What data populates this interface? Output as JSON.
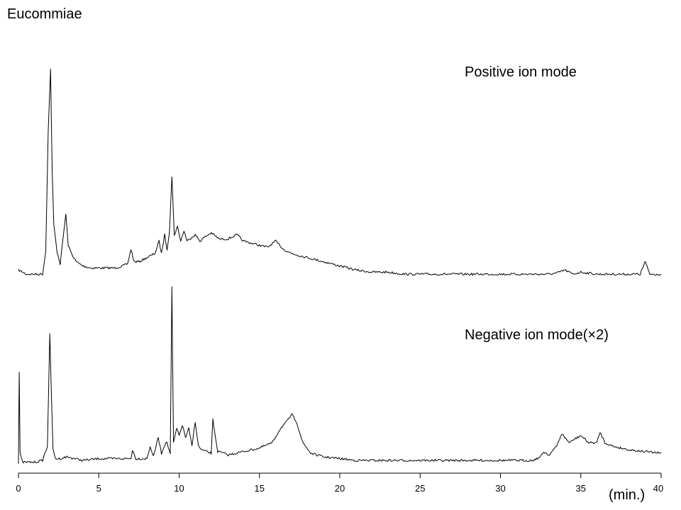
{
  "chart_data": {
    "type": "line",
    "title": "Eucommiae",
    "xlabel": "(min.)",
    "ylabel": "",
    "xlim": [
      0,
      40
    ],
    "x_ticks": [
      "0",
      "5",
      "10",
      "15",
      "20",
      "25",
      "30",
      "35",
      "40"
    ],
    "grid": false,
    "series": [
      {
        "name": "Positive ion mode",
        "color": "#000000",
        "x": [
          0.0,
          0.5,
          1.0,
          1.5,
          1.7,
          1.85,
          2.0,
          2.1,
          2.2,
          2.4,
          2.6,
          2.8,
          2.95,
          3.1,
          3.3,
          3.6,
          4.0,
          4.5,
          5.0,
          5.5,
          6.0,
          6.5,
          6.8,
          7.0,
          7.2,
          7.5,
          8.0,
          8.5,
          8.75,
          8.9,
          9.1,
          9.25,
          9.4,
          9.55,
          9.7,
          9.9,
          10.1,
          10.3,
          10.5,
          10.8,
          11.0,
          11.3,
          11.6,
          12.0,
          12.5,
          13.0,
          13.6,
          14.0,
          14.5,
          15.0,
          15.5,
          16.0,
          16.5,
          17.0,
          17.5,
          18.0,
          19.0,
          20.0,
          21.0,
          22.0,
          23.0,
          24.0,
          25.0,
          26.0,
          27.0,
          28.0,
          29.0,
          30.0,
          31.0,
          32.0,
          33.0,
          33.5,
          34.0,
          34.5,
          35.0,
          36.0,
          37.0,
          38.0,
          38.7,
          39.0,
          39.3,
          40.0
        ],
        "y": [
          0.03,
          0.01,
          0.01,
          0.01,
          0.12,
          0.7,
          1.0,
          0.5,
          0.25,
          0.12,
          0.06,
          0.2,
          0.3,
          0.15,
          0.11,
          0.07,
          0.05,
          0.04,
          0.04,
          0.04,
          0.04,
          0.05,
          0.06,
          0.13,
          0.07,
          0.07,
          0.09,
          0.11,
          0.17,
          0.11,
          0.2,
          0.13,
          0.22,
          0.48,
          0.2,
          0.24,
          0.17,
          0.22,
          0.17,
          0.19,
          0.2,
          0.17,
          0.19,
          0.21,
          0.18,
          0.18,
          0.2,
          0.17,
          0.16,
          0.15,
          0.14,
          0.17,
          0.13,
          0.11,
          0.1,
          0.09,
          0.07,
          0.05,
          0.03,
          0.02,
          0.02,
          0.01,
          0.01,
          0.01,
          0.01,
          0.01,
          0.01,
          0.01,
          0.01,
          0.01,
          0.01,
          0.015,
          0.03,
          0.01,
          0.02,
          0.01,
          0.01,
          0.01,
          0.01,
          0.07,
          0.01,
          0.01
        ]
      },
      {
        "name": "Negative ion mode(×2)",
        "color": "#000000",
        "x": [
          0.0,
          0.05,
          0.1,
          0.25,
          0.5,
          1.0,
          1.5,
          1.8,
          1.95,
          2.05,
          2.15,
          2.3,
          2.6,
          3.0,
          4.0,
          5.0,
          6.0,
          7.0,
          7.1,
          7.3,
          8.0,
          8.2,
          8.4,
          8.7,
          8.9,
          9.2,
          9.45,
          9.55,
          9.65,
          9.85,
          10.0,
          10.2,
          10.4,
          10.6,
          10.8,
          11.0,
          11.2,
          11.4,
          11.7,
          12.0,
          12.1,
          12.4,
          12.8,
          13.0,
          13.5,
          14.0,
          15.0,
          15.8,
          16.3,
          16.8,
          17.0,
          17.3,
          17.7,
          18.2,
          19.0,
          20.0,
          21.0,
          22.0,
          23.0,
          24.0,
          25.0,
          26.0,
          27.0,
          28.0,
          29.0,
          30.0,
          31.0,
          32.0,
          32.5,
          32.7,
          33.0,
          33.5,
          33.8,
          34.0,
          34.3,
          34.6,
          35.0,
          35.5,
          36.0,
          36.2,
          36.5,
          37.0,
          38.0,
          39.0,
          40.0
        ],
        "y": [
          0.0,
          0.52,
          0.06,
          0.01,
          0.01,
          0.01,
          0.02,
          0.1,
          0.73,
          0.4,
          0.08,
          0.03,
          0.03,
          0.04,
          0.02,
          0.03,
          0.03,
          0.03,
          0.08,
          0.03,
          0.03,
          0.1,
          0.04,
          0.15,
          0.06,
          0.13,
          0.06,
          1.0,
          0.12,
          0.2,
          0.16,
          0.22,
          0.15,
          0.2,
          0.1,
          0.24,
          0.1,
          0.08,
          0.07,
          0.06,
          0.25,
          0.07,
          0.06,
          0.05,
          0.06,
          0.07,
          0.09,
          0.12,
          0.2,
          0.25,
          0.28,
          0.24,
          0.12,
          0.06,
          0.04,
          0.03,
          0.02,
          0.02,
          0.02,
          0.02,
          0.02,
          0.02,
          0.02,
          0.02,
          0.02,
          0.02,
          0.02,
          0.02,
          0.04,
          0.07,
          0.05,
          0.1,
          0.17,
          0.15,
          0.12,
          0.14,
          0.16,
          0.12,
          0.12,
          0.18,
          0.12,
          0.1,
          0.08,
          0.07,
          0.06
        ]
      }
    ]
  }
}
